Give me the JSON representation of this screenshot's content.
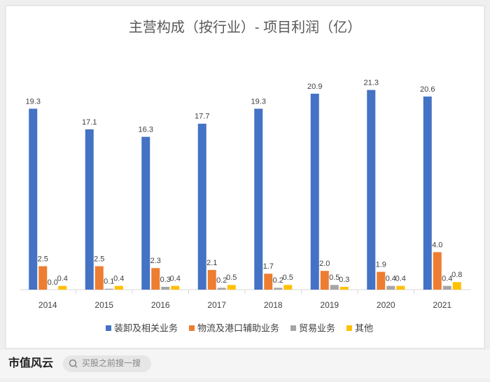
{
  "chart_data": {
    "type": "bar",
    "title": "主营构成（按行业）- 项目利润（亿）",
    "categories": [
      "2014",
      "2015",
      "2016",
      "2017",
      "2018",
      "2019",
      "2020",
      "2021"
    ],
    "series": [
      {
        "name": "装卸及相关业务",
        "color": "#4472c4",
        "values": [
          19.3,
          17.1,
          16.3,
          17.7,
          19.3,
          20.9,
          21.3,
          20.6
        ],
        "value_labels": [
          "19.3",
          "17.1",
          "16.3",
          "17.7",
          "19.3",
          "20.9",
          "21.3",
          "20.6"
        ]
      },
      {
        "name": "物流及港口辅助业务",
        "color": "#ed7d31",
        "values": [
          2.5,
          2.5,
          2.3,
          2.1,
          1.7,
          2,
          1.9,
          4
        ],
        "value_labels": [
          "2.5",
          "2.5",
          "2.3",
          "2.1",
          "1.7",
          "2.0",
          "1.9",
          "4.0"
        ]
      },
      {
        "name": "贸易业务",
        "color": "#a5a5a5",
        "values": [
          0,
          0.1,
          0.3,
          0.2,
          0.2,
          0.5,
          0.4,
          0.4
        ],
        "value_labels": [
          "0.0",
          "0.1",
          "0.3",
          "0.2",
          "0.2",
          "0.5",
          "0.4",
          "0.4"
        ]
      },
      {
        "name": "其他",
        "color": "#ffc000",
        "values": [
          0.4,
          0.4,
          0.4,
          0.5,
          0.5,
          0.3,
          0.4,
          0.8
        ],
        "value_labels": [
          "0.4",
          "0.4",
          "0.4",
          "0.5",
          "0.5",
          "0.3",
          "0.4",
          "0.8"
        ]
      }
    ],
    "legend": "bottom"
  },
  "footer": {
    "logo": "市值风云",
    "search": "买股之前搜一搜"
  }
}
